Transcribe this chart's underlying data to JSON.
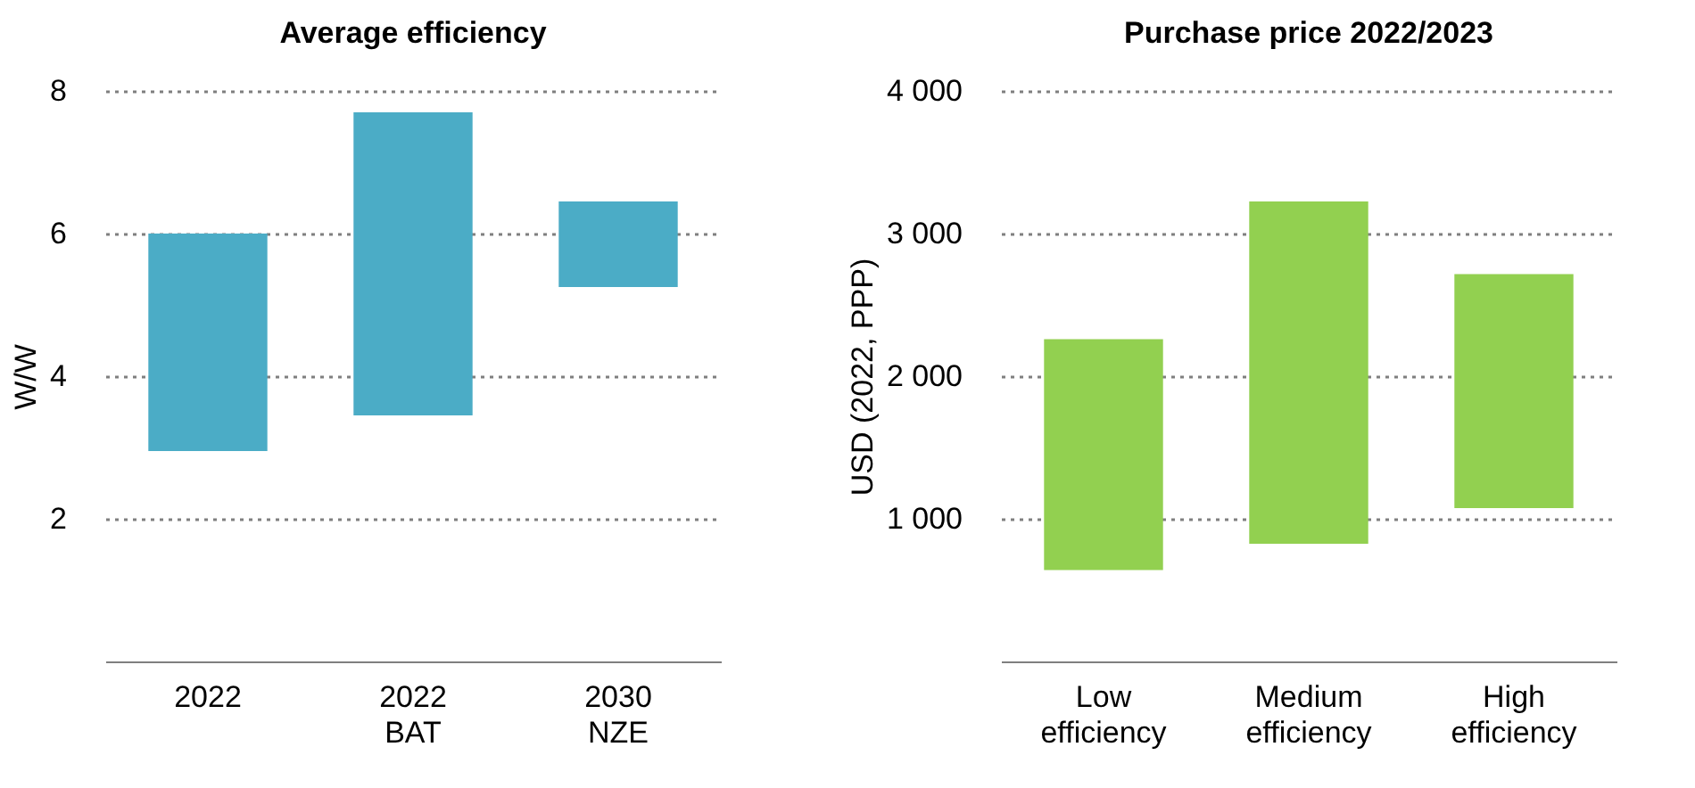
{
  "chart_data": [
    {
      "type": "bar",
      "title": "Average efficiency",
      "ylabel": "W/W",
      "categories": [
        "2022",
        "2022 BAT",
        "2030 NZE"
      ],
      "base": [
        2.95,
        3.45,
        5.25
      ],
      "values": [
        3.05,
        4.25,
        1.2
      ],
      "color": "#4bacc6",
      "ylim": [
        0,
        8
      ],
      "yticks": [
        2,
        4,
        6,
        8
      ],
      "grid": "y"
    },
    {
      "type": "bar",
      "title": "Purchase price 2022/2023",
      "ylabel": "USD (2022, PPP)",
      "categories": [
        "Low efficiency",
        "Medium efficiency",
        "High efficiency"
      ],
      "base": [
        640,
        825,
        1075
      ],
      "values": [
        1620,
        2400,
        1640
      ],
      "color": "#92d050",
      "ylim": [
        0,
        4000
      ],
      "yticks": [
        {
          "value": 1000,
          "label": "1 000"
        },
        {
          "value": 2000,
          "label": "2 000"
        },
        {
          "value": 3000,
          "label": "3 000"
        },
        {
          "value": 4000,
          "label": "4 000"
        }
      ],
      "grid": "y"
    }
  ]
}
